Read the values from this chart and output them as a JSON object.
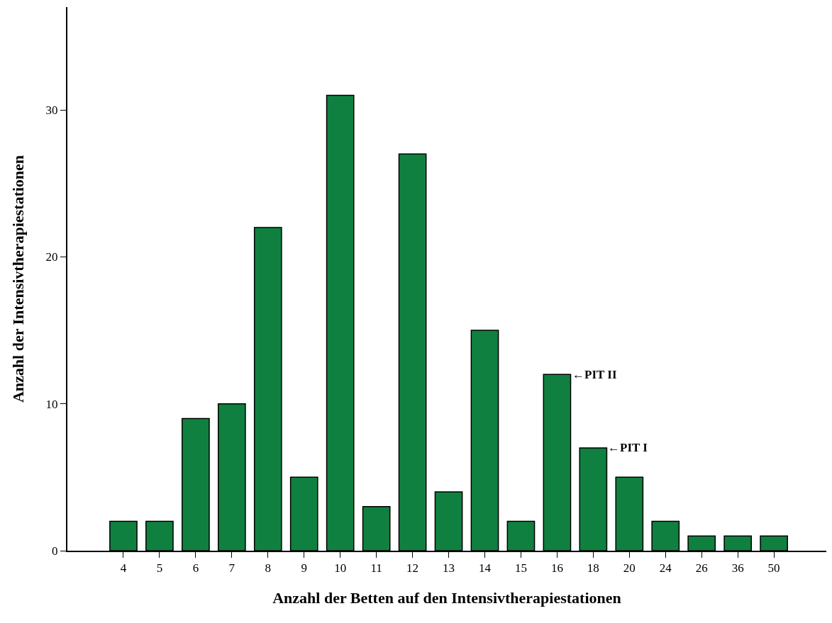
{
  "chart_data": {
    "type": "bar",
    "xlabel": "Anzahl der Betten auf den Intensivtherapiestationen",
    "ylabel": "Anzahl der Intensivtherapiestationen",
    "categories": [
      "4",
      "5",
      "6",
      "7",
      "8",
      "9",
      "10",
      "11",
      "12",
      "13",
      "14",
      "15",
      "16",
      "18",
      "20",
      "24",
      "26",
      "36",
      "50"
    ],
    "values": [
      2,
      2,
      9,
      10,
      22,
      5,
      31,
      3,
      27,
      4,
      15,
      2,
      12,
      7,
      5,
      2,
      1,
      1,
      1
    ],
    "color": "#108040",
    "ylim": [
      0,
      37
    ],
    "yticks": [
      0,
      10,
      20,
      30
    ],
    "grid": false,
    "annotations": [
      {
        "text": "←PIT II",
        "x": "16",
        "y": 12
      },
      {
        "text": "←PIT I",
        "x": "18",
        "y": 7
      }
    ]
  }
}
